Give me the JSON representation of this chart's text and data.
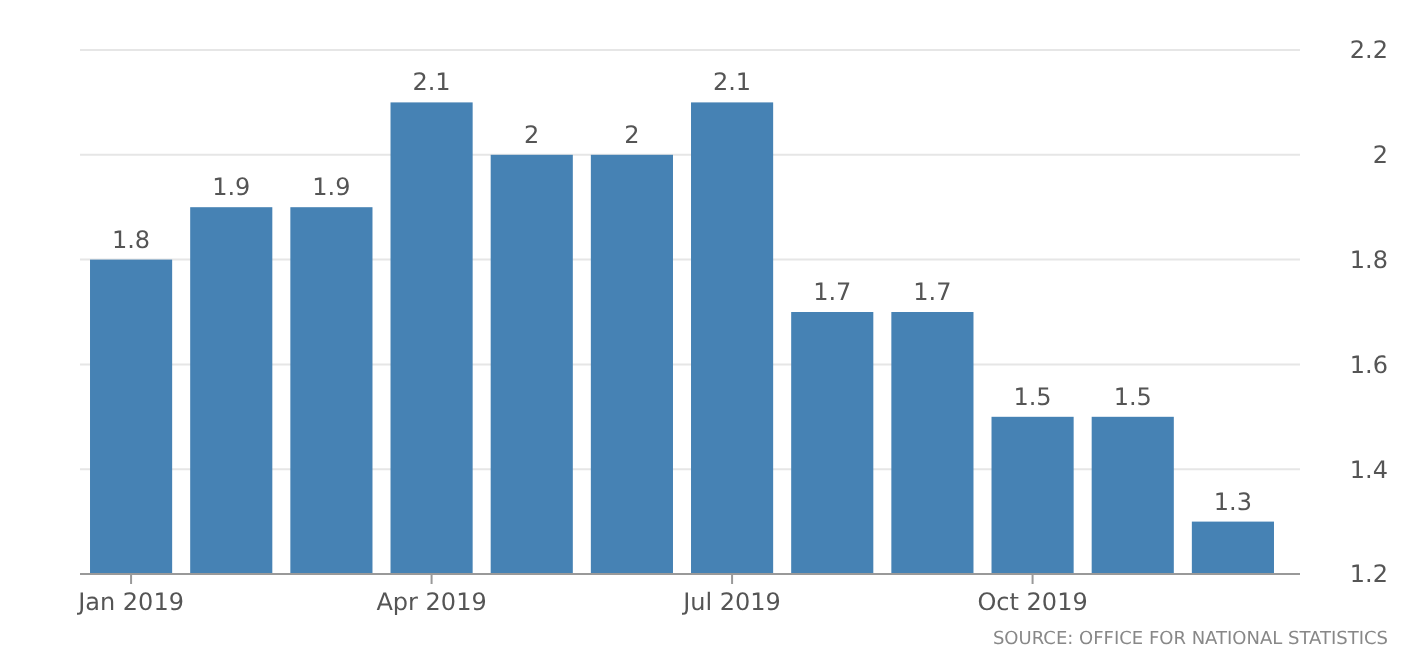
{
  "chart_data": {
    "type": "bar",
    "categories": [
      "Jan 2019",
      null,
      null,
      "Apr 2019",
      null,
      null,
      "Jul 2019",
      null,
      null,
      "Oct 2019",
      null,
      null
    ],
    "values": [
      1.8,
      1.9,
      1.9,
      2.1,
      2,
      2,
      2.1,
      1.7,
      1.7,
      1.5,
      1.5,
      1.3
    ],
    "color": "#4682b4",
    "ylim": [
      1.2,
      2.2
    ],
    "yticks": [
      1.2,
      1.4,
      1.6,
      1.8,
      2,
      2.2
    ],
    "grid": "y",
    "data_labels": true,
    "annotations": [
      "SOURCE: OFFICE FOR NATIONAL STATISTICS"
    ]
  }
}
